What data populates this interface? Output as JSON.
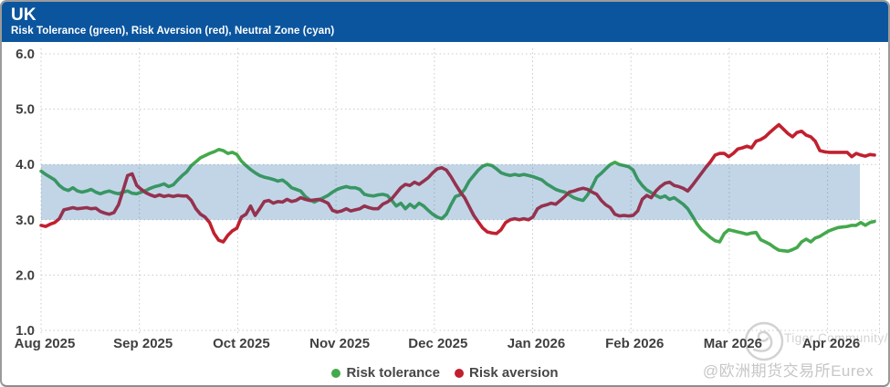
{
  "header": {
    "title": "UK",
    "subtitle": "Risk Tolerance (green), Risk Aversion (red), Neutral Zone (cyan)"
  },
  "watermark": {
    "brand": "Tiger Community/",
    "handle": "@欧洲期货交易所Eurex"
  },
  "chart_data": {
    "type": "line",
    "title": "UK",
    "subtitle": "Risk Tolerance (green), Risk Aversion (red), Neutral Zone (cyan)",
    "x_tick_labels": [
      "Aug 2025",
      "Sep 2025",
      "Oct 2025",
      "Nov 2025",
      "Dec 2025",
      "Jan 2026",
      "Feb 2026",
      "Mar 2026",
      "Apr 2026"
    ],
    "y_tick_labels": [
      "6.0",
      "5.0",
      "4.0",
      "3.0",
      "2.0",
      "1.0"
    ],
    "ylim": [
      1.0,
      6.0
    ],
    "grid": "dotted",
    "legend_position": "bottom-center",
    "neutral_zone": {
      "label": "Neutral Zone",
      "from": 3.0,
      "to": 4.0,
      "fill": "#1f63a5",
      "opacity": 0.27
    },
    "series": [
      {
        "name": "Risk tolerance",
        "color": "#44a94c",
        "values": [
          3.88,
          3.82,
          3.77,
          3.72,
          3.62,
          3.56,
          3.53,
          3.58,
          3.52,
          3.5,
          3.52,
          3.55,
          3.5,
          3.47,
          3.5,
          3.52,
          3.49,
          3.47,
          3.5,
          3.52,
          3.48,
          3.47,
          3.5,
          3.53,
          3.57,
          3.6,
          3.62,
          3.65,
          3.6,
          3.63,
          3.72,
          3.8,
          3.87,
          3.98,
          4.05,
          4.12,
          4.16,
          4.2,
          4.23,
          4.27,
          4.25,
          4.2,
          4.22,
          4.18,
          4.06,
          3.98,
          3.91,
          3.85,
          3.8,
          3.77,
          3.75,
          3.73,
          3.7,
          3.72,
          3.66,
          3.58,
          3.55,
          3.52,
          3.42,
          3.36,
          3.32,
          3.36,
          3.4,
          3.44,
          3.5,
          3.55,
          3.58,
          3.6,
          3.58,
          3.58,
          3.55,
          3.46,
          3.44,
          3.43,
          3.45,
          3.46,
          3.44,
          3.35,
          3.25,
          3.3,
          3.2,
          3.28,
          3.22,
          3.3,
          3.25,
          3.17,
          3.1,
          3.05,
          3.02,
          3.1,
          3.27,
          3.42,
          3.45,
          3.55,
          3.7,
          3.8,
          3.9,
          3.97,
          4.0,
          3.98,
          3.92,
          3.85,
          3.82,
          3.8,
          3.82,
          3.8,
          3.82,
          3.8,
          3.78,
          3.75,
          3.72,
          3.65,
          3.6,
          3.55,
          3.52,
          3.5,
          3.45,
          3.4,
          3.37,
          3.35,
          3.45,
          3.6,
          3.77,
          3.84,
          3.92,
          4.0,
          4.04,
          4.0,
          3.98,
          3.96,
          3.9,
          3.73,
          3.62,
          3.54,
          3.49,
          3.44,
          3.4,
          3.43,
          3.37,
          3.4,
          3.34,
          3.28,
          3.2,
          3.07,
          2.93,
          2.82,
          2.75,
          2.68,
          2.62,
          2.6,
          2.75,
          2.82,
          2.8,
          2.78,
          2.76,
          2.74,
          2.76,
          2.77,
          2.64,
          2.6,
          2.56,
          2.5,
          2.45,
          2.44,
          2.43,
          2.46,
          2.5,
          2.6,
          2.65,
          2.6,
          2.67,
          2.7,
          2.75,
          2.8,
          2.83,
          2.86,
          2.87,
          2.88,
          2.9,
          2.9,
          2.95,
          2.9,
          2.95,
          2.97
        ]
      },
      {
        "name": "Risk aversion",
        "color": "#c1202f",
        "values": [
          2.9,
          2.88,
          2.92,
          2.95,
          3.02,
          3.18,
          3.2,
          3.22,
          3.2,
          3.21,
          3.22,
          3.2,
          3.21,
          3.15,
          3.12,
          3.1,
          3.13,
          3.27,
          3.53,
          3.8,
          3.83,
          3.62,
          3.55,
          3.49,
          3.45,
          3.42,
          3.45,
          3.42,
          3.44,
          3.42,
          3.44,
          3.43,
          3.43,
          3.35,
          3.2,
          3.1,
          3.05,
          2.95,
          2.75,
          2.63,
          2.6,
          2.72,
          2.8,
          2.85,
          3.05,
          3.1,
          3.25,
          3.08,
          3.2,
          3.33,
          3.35,
          3.3,
          3.33,
          3.32,
          3.37,
          3.33,
          3.35,
          3.4,
          3.37,
          3.35,
          3.36,
          3.37,
          3.34,
          3.3,
          3.17,
          3.14,
          3.16,
          3.2,
          3.16,
          3.18,
          3.2,
          3.25,
          3.22,
          3.2,
          3.2,
          3.28,
          3.32,
          3.38,
          3.48,
          3.58,
          3.64,
          3.62,
          3.68,
          3.64,
          3.7,
          3.76,
          3.85,
          3.92,
          3.94,
          3.9,
          3.78,
          3.64,
          3.51,
          3.4,
          3.24,
          3.08,
          2.96,
          2.85,
          2.78,
          2.76,
          2.75,
          2.82,
          2.95,
          3.0,
          3.02,
          3.0,
          3.02,
          3.0,
          3.05,
          3.2,
          3.25,
          3.27,
          3.3,
          3.28,
          3.35,
          3.42,
          3.5,
          3.52,
          3.55,
          3.57,
          3.55,
          3.5,
          3.46,
          3.35,
          3.27,
          3.22,
          3.1,
          3.07,
          3.08,
          3.07,
          3.08,
          3.16,
          3.37,
          3.44,
          3.4,
          3.52,
          3.6,
          3.66,
          3.68,
          3.62,
          3.6,
          3.57,
          3.52,
          3.62,
          3.73,
          3.84,
          3.95,
          4.05,
          4.17,
          4.2,
          4.2,
          4.14,
          4.2,
          4.28,
          4.3,
          4.33,
          4.3,
          4.42,
          4.45,
          4.5,
          4.58,
          4.65,
          4.72,
          4.64,
          4.56,
          4.5,
          4.58,
          4.6,
          4.53,
          4.5,
          4.42,
          4.25,
          4.23,
          4.22,
          4.22,
          4.22,
          4.22,
          4.22,
          4.14,
          4.2,
          4.17,
          4.15,
          4.18,
          4.17
        ]
      }
    ]
  }
}
